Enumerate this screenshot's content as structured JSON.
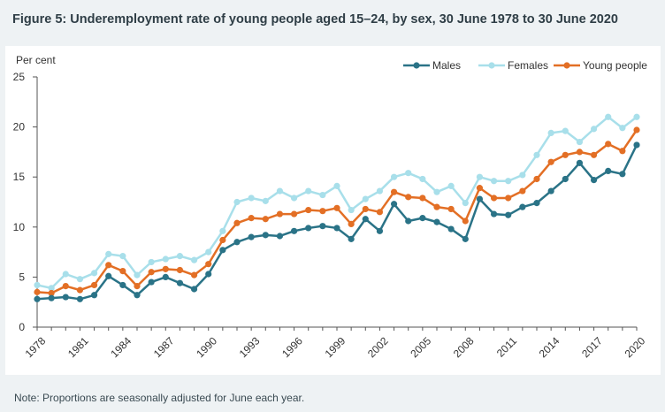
{
  "title": "Figure 5: Underemployment rate of young people aged 15–24, by sex, 30 June 1978 to 30 June 2020",
  "note": "Note: Proportions are seasonally adjusted for June each year.",
  "colors": {
    "males": "#2a7387",
    "females": "#a8dfea",
    "young": "#e36f25",
    "axis": "#555555",
    "text": "#333333"
  },
  "chart_data": {
    "type": "line",
    "ylabel": "Per cent",
    "ylim": [
      0,
      25
    ],
    "yticks": [
      "0",
      "5",
      "10",
      "15",
      "20",
      "25"
    ],
    "xticks": [
      "1978",
      "1981",
      "1984",
      "1987",
      "1990",
      "1993",
      "1996",
      "1999",
      "2002",
      "2005",
      "2008",
      "2011",
      "2014",
      "2017",
      "2020"
    ],
    "x": [
      1978,
      1979,
      1980,
      1981,
      1982,
      1983,
      1984,
      1985,
      1986,
      1987,
      1988,
      1989,
      1990,
      1991,
      1992,
      1993,
      1994,
      1995,
      1996,
      1997,
      1998,
      1999,
      2000,
      2001,
      2002,
      2003,
      2004,
      2005,
      2006,
      2007,
      2008,
      2009,
      2010,
      2011,
      2012,
      2013,
      2014,
      2015,
      2016,
      2017,
      2018,
      2019,
      2020
    ],
    "legend": "top-right",
    "grid": false,
    "series": [
      {
        "name": "Males",
        "color": "#2a7387",
        "values": [
          2.8,
          2.9,
          3.0,
          2.8,
          3.2,
          5.1,
          4.2,
          3.2,
          4.5,
          5.0,
          4.4,
          3.8,
          5.3,
          7.7,
          8.5,
          9.0,
          9.2,
          9.1,
          9.6,
          9.9,
          10.1,
          9.9,
          8.8,
          10.8,
          9.6,
          12.3,
          10.6,
          10.9,
          10.5,
          9.8,
          8.8,
          12.8,
          11.3,
          11.2,
          12.0,
          12.4,
          13.6,
          14.8,
          16.4,
          14.7,
          15.6,
          15.3,
          18.2
        ]
      },
      {
        "name": "Females",
        "color": "#a8dfea",
        "values": [
          4.2,
          3.9,
          5.3,
          4.8,
          5.4,
          7.3,
          7.1,
          5.2,
          6.5,
          6.8,
          7.1,
          6.7,
          7.5,
          9.6,
          12.5,
          12.9,
          12.6,
          13.6,
          12.9,
          13.6,
          13.2,
          14.1,
          11.7,
          12.8,
          13.6,
          15.0,
          15.4,
          14.8,
          13.5,
          14.1,
          12.4,
          15.0,
          14.6,
          14.6,
          15.2,
          17.2,
          19.4,
          19.6,
          18.5,
          19.8,
          21.0,
          19.9,
          21.0
        ]
      },
      {
        "name": "Young people",
        "color": "#e36f25",
        "values": [
          3.5,
          3.4,
          4.1,
          3.7,
          4.2,
          6.2,
          5.6,
          4.1,
          5.5,
          5.8,
          5.7,
          5.2,
          6.3,
          8.7,
          10.4,
          10.9,
          10.8,
          11.3,
          11.3,
          11.7,
          11.6,
          11.9,
          10.3,
          11.8,
          11.5,
          13.5,
          13.0,
          12.9,
          12.0,
          11.8,
          10.6,
          13.9,
          12.9,
          12.9,
          13.6,
          14.8,
          16.5,
          17.2,
          17.5,
          17.2,
          18.3,
          17.6,
          19.7
        ]
      }
    ]
  }
}
